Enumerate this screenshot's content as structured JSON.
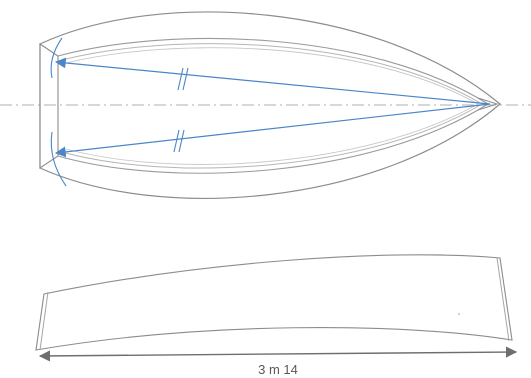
{
  "dimension": {
    "length_label": "3 m 14"
  },
  "colors": {
    "outline": "#8c8c8c",
    "inner_outline": "#a6a6a6",
    "centerline": "#bfbfbf",
    "arrow_blue": "#4a86c8",
    "dimension_line": "#6e6e6e"
  }
}
